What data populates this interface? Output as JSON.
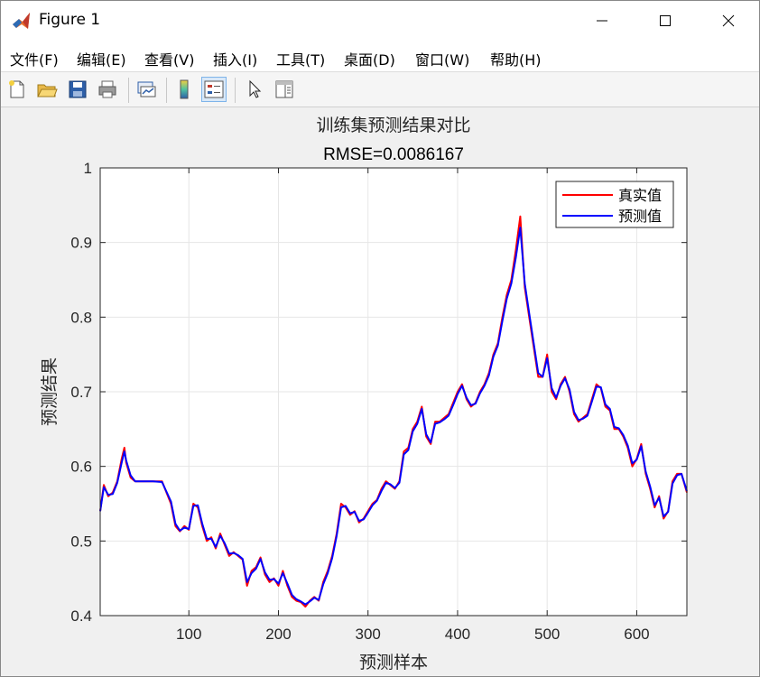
{
  "window": {
    "title": "Figure 1"
  },
  "menu": {
    "items": [
      "文件(F)",
      "编辑(E)",
      "查看(V)",
      "插入(I)",
      "工具(T)",
      "桌面(D)",
      "窗口(W)",
      "帮助(H)"
    ]
  },
  "toolbar": {
    "tools": [
      {
        "name": "new-figure-icon"
      },
      {
        "name": "open-file-icon"
      },
      {
        "name": "save-icon"
      },
      {
        "name": "print-icon"
      },
      {
        "name": "link-plot-icon"
      },
      {
        "name": "colorbar-icon"
      },
      {
        "name": "legend-icon"
      },
      {
        "name": "pointer-icon"
      },
      {
        "name": "property-editor-icon"
      }
    ]
  },
  "colors": {
    "true_series": "#ff0000",
    "pred_series": "#0000ff",
    "grid": "#e6e6e6",
    "axes_bg": "#ffffff"
  },
  "chart_data": {
    "type": "line",
    "title": "训练集预测结果对比",
    "subtitle": "RMSE=0.0086167",
    "xlabel": "预测样本",
    "ylabel": "预测结果",
    "xlim": [
      1,
      656
    ],
    "ylim": [
      0.4,
      1.0
    ],
    "xticks": [
      100,
      200,
      300,
      400,
      500,
      600
    ],
    "xtick_labels": [
      "100",
      "200",
      "300",
      "400",
      "500",
      "600"
    ],
    "yticks": [
      0.4,
      0.5,
      0.6,
      0.7,
      0.8,
      0.9,
      1.0
    ],
    "ytick_labels": [
      "0.4",
      "0.5",
      "0.6",
      "0.7",
      "0.8",
      "0.9",
      "1"
    ],
    "grid": true,
    "legend_position": "top-right",
    "series": [
      {
        "name": "真实值",
        "color": "#ff0000",
        "x": [
          1,
          5,
          10,
          15,
          20,
          25,
          28,
          30,
          35,
          40,
          50,
          60,
          70,
          80,
          85,
          90,
          95,
          100,
          105,
          110,
          115,
          120,
          125,
          130,
          135,
          140,
          145,
          150,
          155,
          160,
          165,
          170,
          175,
          180,
          185,
          190,
          195,
          200,
          205,
          210,
          215,
          220,
          225,
          230,
          235,
          240,
          245,
          250,
          255,
          260,
          265,
          270,
          275,
          280,
          285,
          290,
          295,
          300,
          305,
          310,
          315,
          320,
          325,
          330,
          335,
          340,
          345,
          350,
          355,
          360,
          365,
          370,
          375,
          380,
          385,
          390,
          395,
          400,
          405,
          410,
          415,
          420,
          425,
          430,
          435,
          440,
          445,
          450,
          455,
          460,
          465,
          470,
          475,
          480,
          485,
          490,
          495,
          500,
          505,
          510,
          515,
          520,
          525,
          530,
          535,
          540,
          545,
          550,
          555,
          560,
          565,
          570,
          575,
          580,
          585,
          590,
          595,
          600,
          605,
          610,
          615,
          620,
          625,
          630,
          635,
          640,
          645,
          650,
          656
        ],
        "y": [
          0.54,
          0.575,
          0.56,
          0.565,
          0.58,
          0.61,
          0.625,
          0.605,
          0.585,
          0.58,
          0.58,
          0.58,
          0.58,
          0.55,
          0.52,
          0.513,
          0.52,
          0.515,
          0.55,
          0.545,
          0.52,
          0.5,
          0.505,
          0.49,
          0.51,
          0.495,
          0.48,
          0.485,
          0.48,
          0.475,
          0.44,
          0.46,
          0.465,
          0.478,
          0.455,
          0.445,
          0.45,
          0.44,
          0.46,
          0.44,
          0.425,
          0.42,
          0.418,
          0.412,
          0.42,
          0.425,
          0.42,
          0.445,
          0.46,
          0.48,
          0.51,
          0.55,
          0.545,
          0.535,
          0.54,
          0.525,
          0.53,
          0.54,
          0.55,
          0.555,
          0.57,
          0.58,
          0.575,
          0.57,
          0.58,
          0.62,
          0.625,
          0.65,
          0.66,
          0.68,
          0.64,
          0.63,
          0.66,
          0.66,
          0.665,
          0.67,
          0.685,
          0.7,
          0.71,
          0.69,
          0.68,
          0.685,
          0.7,
          0.71,
          0.725,
          0.75,
          0.765,
          0.8,
          0.83,
          0.85,
          0.89,
          0.935,
          0.84,
          0.8,
          0.76,
          0.72,
          0.72,
          0.75,
          0.7,
          0.69,
          0.71,
          0.72,
          0.7,
          0.67,
          0.66,
          0.665,
          0.67,
          0.69,
          0.71,
          0.705,
          0.68,
          0.675,
          0.65,
          0.65,
          0.64,
          0.625,
          0.6,
          0.61,
          0.63,
          0.59,
          0.57,
          0.545,
          0.56,
          0.53,
          0.54,
          0.58,
          0.59,
          0.59,
          0.565
        ]
      },
      {
        "name": "预测值",
        "color": "#0000ff",
        "x": [
          1,
          5,
          10,
          15,
          20,
          25,
          28,
          30,
          35,
          40,
          50,
          60,
          70,
          80,
          85,
          90,
          95,
          100,
          105,
          110,
          115,
          120,
          125,
          130,
          135,
          140,
          145,
          150,
          155,
          160,
          165,
          170,
          175,
          180,
          185,
          190,
          195,
          200,
          205,
          210,
          215,
          220,
          225,
          230,
          235,
          240,
          245,
          250,
          255,
          260,
          265,
          270,
          275,
          280,
          285,
          290,
          295,
          300,
          305,
          310,
          315,
          320,
          325,
          330,
          335,
          340,
          345,
          350,
          355,
          360,
          365,
          370,
          375,
          380,
          385,
          390,
          395,
          400,
          405,
          410,
          415,
          420,
          425,
          430,
          435,
          440,
          445,
          450,
          455,
          460,
          465,
          470,
          475,
          480,
          485,
          490,
          495,
          500,
          505,
          510,
          515,
          520,
          525,
          530,
          535,
          540,
          545,
          550,
          555,
          560,
          565,
          570,
          575,
          580,
          585,
          590,
          595,
          600,
          605,
          610,
          615,
          620,
          625,
          630,
          635,
          640,
          645,
          650,
          656
        ],
        "y": [
          0.54,
          0.572,
          0.562,
          0.563,
          0.578,
          0.605,
          0.62,
          0.608,
          0.588,
          0.58,
          0.58,
          0.58,
          0.579,
          0.553,
          0.523,
          0.514,
          0.518,
          0.516,
          0.547,
          0.548,
          0.523,
          0.503,
          0.503,
          0.492,
          0.507,
          0.497,
          0.483,
          0.484,
          0.481,
          0.476,
          0.445,
          0.457,
          0.463,
          0.476,
          0.458,
          0.448,
          0.449,
          0.443,
          0.457,
          0.443,
          0.428,
          0.422,
          0.419,
          0.415,
          0.419,
          0.424,
          0.421,
          0.442,
          0.457,
          0.477,
          0.507,
          0.545,
          0.547,
          0.537,
          0.539,
          0.527,
          0.529,
          0.538,
          0.548,
          0.554,
          0.567,
          0.578,
          0.576,
          0.571,
          0.578,
          0.616,
          0.622,
          0.647,
          0.657,
          0.677,
          0.643,
          0.632,
          0.657,
          0.659,
          0.663,
          0.668,
          0.682,
          0.697,
          0.708,
          0.692,
          0.682,
          0.684,
          0.698,
          0.708,
          0.722,
          0.747,
          0.762,
          0.795,
          0.825,
          0.845,
          0.88,
          0.92,
          0.845,
          0.805,
          0.765,
          0.725,
          0.72,
          0.745,
          0.705,
          0.692,
          0.708,
          0.718,
          0.703,
          0.673,
          0.662,
          0.664,
          0.668,
          0.687,
          0.707,
          0.706,
          0.683,
          0.677,
          0.653,
          0.651,
          0.642,
          0.628,
          0.604,
          0.609,
          0.627,
          0.593,
          0.573,
          0.548,
          0.558,
          0.533,
          0.539,
          0.577,
          0.588,
          0.59,
          0.567
        ]
      }
    ]
  }
}
